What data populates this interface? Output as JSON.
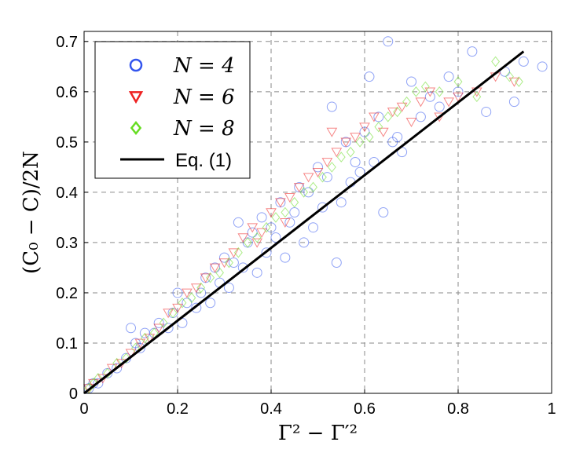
{
  "chart_data": {
    "type": "scatter",
    "xlabel": "Γ² − Γ′²",
    "ylabel": "(C₀ − C)/2N",
    "xlim": [
      0,
      1
    ],
    "ylim": [
      0,
      0.72
    ],
    "x_ticks": [
      "0",
      "0.2",
      "0.4",
      "0.6",
      "0.8",
      "1"
    ],
    "y_ticks": [
      "0",
      "0.1",
      "0.2",
      "0.3",
      "0.4",
      "0.5",
      "0.6",
      "0.7"
    ],
    "grid": true,
    "legend_position": "top-left",
    "series": [
      {
        "name": "N = 4",
        "marker": "circle",
        "color": "#3355ee",
        "points": [
          [
            0.01,
            0.01
          ],
          [
            0.02,
            0.02
          ],
          [
            0.03,
            0.02
          ],
          [
            0.05,
            0.04
          ],
          [
            0.07,
            0.05
          ],
          [
            0.09,
            0.07
          ],
          [
            0.1,
            0.13
          ],
          [
            0.11,
            0.1
          ],
          [
            0.12,
            0.09
          ],
          [
            0.13,
            0.12
          ],
          [
            0.15,
            0.12
          ],
          [
            0.16,
            0.14
          ],
          [
            0.18,
            0.13
          ],
          [
            0.19,
            0.16
          ],
          [
            0.2,
            0.2
          ],
          [
            0.21,
            0.14
          ],
          [
            0.22,
            0.18
          ],
          [
            0.24,
            0.17
          ],
          [
            0.25,
            0.2
          ],
          [
            0.26,
            0.23
          ],
          [
            0.27,
            0.18
          ],
          [
            0.28,
            0.25
          ],
          [
            0.29,
            0.22
          ],
          [
            0.3,
            0.27
          ],
          [
            0.31,
            0.21
          ],
          [
            0.32,
            0.26
          ],
          [
            0.33,
            0.34
          ],
          [
            0.34,
            0.25
          ],
          [
            0.35,
            0.3
          ],
          [
            0.36,
            0.32
          ],
          [
            0.37,
            0.24
          ],
          [
            0.38,
            0.35
          ],
          [
            0.39,
            0.28
          ],
          [
            0.4,
            0.33
          ],
          [
            0.41,
            0.31
          ],
          [
            0.42,
            0.38
          ],
          [
            0.43,
            0.27
          ],
          [
            0.44,
            0.34
          ],
          [
            0.45,
            0.36
          ],
          [
            0.46,
            0.41
          ],
          [
            0.47,
            0.3
          ],
          [
            0.48,
            0.4
          ],
          [
            0.49,
            0.33
          ],
          [
            0.5,
            0.45
          ],
          [
            0.51,
            0.37
          ],
          [
            0.52,
            0.43
          ],
          [
            0.53,
            0.57
          ],
          [
            0.54,
            0.26
          ],
          [
            0.55,
            0.38
          ],
          [
            0.56,
            0.5
          ],
          [
            0.57,
            0.42
          ],
          [
            0.58,
            0.46
          ],
          [
            0.59,
            0.44
          ],
          [
            0.6,
            0.52
          ],
          [
            0.61,
            0.63
          ],
          [
            0.62,
            0.46
          ],
          [
            0.63,
            0.55
          ],
          [
            0.64,
            0.36
          ],
          [
            0.65,
            0.7
          ],
          [
            0.66,
            0.5
          ],
          [
            0.67,
            0.51
          ],
          [
            0.68,
            0.48
          ],
          [
            0.7,
            0.62
          ],
          [
            0.72,
            0.55
          ],
          [
            0.74,
            0.59
          ],
          [
            0.76,
            0.57
          ],
          [
            0.78,
            0.63
          ],
          [
            0.8,
            0.6
          ],
          [
            0.83,
            0.68
          ],
          [
            0.86,
            0.56
          ],
          [
            0.9,
            0.64
          ],
          [
            0.92,
            0.58
          ],
          [
            0.94,
            0.66
          ],
          [
            0.98,
            0.65
          ]
        ]
      },
      {
        "name": "N = 6",
        "marker": "triangle-down",
        "color": "#ee2222",
        "points": [
          [
            0.01,
            0.01
          ],
          [
            0.02,
            0.02
          ],
          [
            0.04,
            0.03
          ],
          [
            0.06,
            0.05
          ],
          [
            0.08,
            0.06
          ],
          [
            0.1,
            0.08
          ],
          [
            0.12,
            0.1
          ],
          [
            0.14,
            0.11
          ],
          [
            0.16,
            0.13
          ],
          [
            0.18,
            0.16
          ],
          [
            0.2,
            0.17
          ],
          [
            0.22,
            0.2
          ],
          [
            0.24,
            0.21
          ],
          [
            0.26,
            0.23
          ],
          [
            0.28,
            0.25
          ],
          [
            0.3,
            0.26
          ],
          [
            0.32,
            0.28
          ],
          [
            0.34,
            0.31
          ],
          [
            0.36,
            0.33
          ],
          [
            0.37,
            0.3
          ],
          [
            0.38,
            0.32
          ],
          [
            0.4,
            0.36
          ],
          [
            0.42,
            0.38
          ],
          [
            0.43,
            0.34
          ],
          [
            0.44,
            0.39
          ],
          [
            0.46,
            0.41
          ],
          [
            0.48,
            0.43
          ],
          [
            0.5,
            0.44
          ],
          [
            0.52,
            0.46
          ],
          [
            0.53,
            0.52
          ],
          [
            0.54,
            0.48
          ],
          [
            0.56,
            0.5
          ],
          [
            0.58,
            0.51
          ],
          [
            0.6,
            0.53
          ],
          [
            0.62,
            0.55
          ],
          [
            0.64,
            0.52
          ],
          [
            0.66,
            0.56
          ],
          [
            0.68,
            0.57
          ],
          [
            0.7,
            0.54
          ],
          [
            0.72,
            0.58
          ],
          [
            0.74,
            0.6
          ],
          [
            0.76,
            0.55
          ],
          [
            0.78,
            0.58
          ],
          [
            0.8,
            0.59
          ],
          [
            0.84,
            0.6
          ],
          [
            0.88,
            0.63
          ],
          [
            0.92,
            0.62
          ]
        ]
      },
      {
        "name": "N = 8",
        "marker": "diamond",
        "color": "#66dd22",
        "points": [
          [
            0.01,
            0.01
          ],
          [
            0.02,
            0.02
          ],
          [
            0.03,
            0.03
          ],
          [
            0.05,
            0.04
          ],
          [
            0.07,
            0.06
          ],
          [
            0.09,
            0.07
          ],
          [
            0.11,
            0.09
          ],
          [
            0.13,
            0.11
          ],
          [
            0.15,
            0.12
          ],
          [
            0.17,
            0.14
          ],
          [
            0.19,
            0.16
          ],
          [
            0.21,
            0.18
          ],
          [
            0.23,
            0.19
          ],
          [
            0.25,
            0.21
          ],
          [
            0.27,
            0.23
          ],
          [
            0.29,
            0.24
          ],
          [
            0.31,
            0.26
          ],
          [
            0.33,
            0.28
          ],
          [
            0.35,
            0.3
          ],
          [
            0.37,
            0.31
          ],
          [
            0.39,
            0.33
          ],
          [
            0.41,
            0.35
          ],
          [
            0.43,
            0.36
          ],
          [
            0.45,
            0.38
          ],
          [
            0.47,
            0.4
          ],
          [
            0.49,
            0.41
          ],
          [
            0.51,
            0.43
          ],
          [
            0.53,
            0.45
          ],
          [
            0.55,
            0.47
          ],
          [
            0.57,
            0.48
          ],
          [
            0.59,
            0.5
          ],
          [
            0.61,
            0.51
          ],
          [
            0.63,
            0.53
          ],
          [
            0.65,
            0.55
          ],
          [
            0.67,
            0.56
          ],
          [
            0.69,
            0.58
          ],
          [
            0.71,
            0.6
          ],
          [
            0.73,
            0.61
          ],
          [
            0.76,
            0.6
          ],
          [
            0.8,
            0.62
          ],
          [
            0.84,
            0.59
          ],
          [
            0.88,
            0.66
          ],
          [
            0.91,
            0.63
          ],
          [
            0.93,
            0.62
          ]
        ]
      },
      {
        "name": "Eq. (1)",
        "marker": "line",
        "color": "#000000",
        "points": [
          [
            0,
            0
          ],
          [
            0.94,
            0.68
          ]
        ]
      }
    ]
  }
}
